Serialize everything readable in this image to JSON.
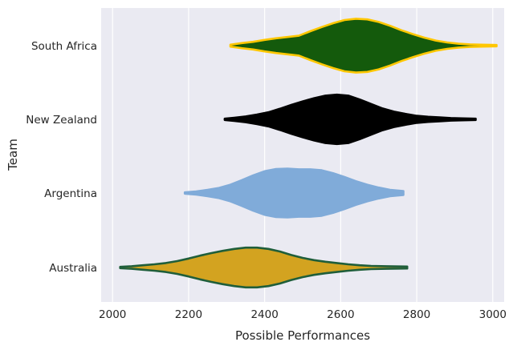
{
  "chart_data": {
    "type": "violin",
    "orientation": "horizontal",
    "xlabel": "Possible Performances",
    "ylabel": "Team",
    "xlim": [
      1970,
      3030
    ],
    "xticks": [
      2000,
      2200,
      2400,
      2600,
      2800,
      3000
    ],
    "grid": true,
    "categories": [
      "South Africa",
      "New Zealand",
      "Argentina",
      "Australia"
    ],
    "series": [
      {
        "name": "South Africa",
        "fill": "#145a0c",
        "edge": "#ffc700",
        "profile": [
          [
            2310,
            0.03
          ],
          [
            2340,
            0.08
          ],
          [
            2370,
            0.12
          ],
          [
            2400,
            0.18
          ],
          [
            2430,
            0.23
          ],
          [
            2460,
            0.27
          ],
          [
            2490,
            0.31
          ],
          [
            2520,
            0.45
          ],
          [
            2550,
            0.58
          ],
          [
            2580,
            0.7
          ],
          [
            2610,
            0.8
          ],
          [
            2640,
            0.84
          ],
          [
            2670,
            0.82
          ],
          [
            2700,
            0.74
          ],
          [
            2730,
            0.62
          ],
          [
            2760,
            0.48
          ],
          [
            2790,
            0.36
          ],
          [
            2820,
            0.25
          ],
          [
            2850,
            0.16
          ],
          [
            2880,
            0.1
          ],
          [
            2910,
            0.06
          ],
          [
            2940,
            0.04
          ],
          [
            2970,
            0.03
          ],
          [
            3010,
            0.02
          ]
        ]
      },
      {
        "name": "New Zealand",
        "fill": "#000000",
        "edge": "#000000",
        "profile": [
          [
            2295,
            0.02
          ],
          [
            2320,
            0.05
          ],
          [
            2350,
            0.09
          ],
          [
            2380,
            0.15
          ],
          [
            2410,
            0.22
          ],
          [
            2440,
            0.33
          ],
          [
            2470,
            0.45
          ],
          [
            2500,
            0.56
          ],
          [
            2530,
            0.66
          ],
          [
            2560,
            0.74
          ],
          [
            2590,
            0.77
          ],
          [
            2620,
            0.74
          ],
          [
            2650,
            0.62
          ],
          [
            2680,
            0.48
          ],
          [
            2710,
            0.34
          ],
          [
            2740,
            0.24
          ],
          [
            2770,
            0.17
          ],
          [
            2800,
            0.11
          ],
          [
            2830,
            0.08
          ],
          [
            2860,
            0.06
          ],
          [
            2890,
            0.04
          ],
          [
            2920,
            0.03
          ],
          [
            2955,
            0.02
          ]
        ]
      },
      {
        "name": "Argentina",
        "fill": "#80abd9",
        "edge": "#80abd9",
        "profile": [
          [
            2190,
            0.02
          ],
          [
            2220,
            0.05
          ],
          [
            2250,
            0.1
          ],
          [
            2280,
            0.16
          ],
          [
            2310,
            0.26
          ],
          [
            2340,
            0.4
          ],
          [
            2370,
            0.55
          ],
          [
            2400,
            0.68
          ],
          [
            2430,
            0.75
          ],
          [
            2460,
            0.76
          ],
          [
            2490,
            0.74
          ],
          [
            2520,
            0.74
          ],
          [
            2550,
            0.71
          ],
          [
            2580,
            0.62
          ],
          [
            2610,
            0.5
          ],
          [
            2640,
            0.37
          ],
          [
            2670,
            0.26
          ],
          [
            2700,
            0.17
          ],
          [
            2730,
            0.1
          ],
          [
            2765,
            0.06
          ]
        ]
      },
      {
        "name": "Australia",
        "fill": "#d3a320",
        "edge": "#1f5e3a",
        "profile": [
          [
            2020,
            0.02
          ],
          [
            2050,
            0.04
          ],
          [
            2080,
            0.07
          ],
          [
            2110,
            0.1
          ],
          [
            2140,
            0.14
          ],
          [
            2170,
            0.2
          ],
          [
            2200,
            0.28
          ],
          [
            2230,
            0.37
          ],
          [
            2260,
            0.45
          ],
          [
            2290,
            0.52
          ],
          [
            2320,
            0.58
          ],
          [
            2350,
            0.62
          ],
          [
            2380,
            0.62
          ],
          [
            2410,
            0.58
          ],
          [
            2440,
            0.5
          ],
          [
            2470,
            0.39
          ],
          [
            2500,
            0.3
          ],
          [
            2530,
            0.23
          ],
          [
            2560,
            0.18
          ],
          [
            2590,
            0.14
          ],
          [
            2620,
            0.1
          ],
          [
            2650,
            0.07
          ],
          [
            2680,
            0.05
          ],
          [
            2720,
            0.04
          ],
          [
            2775,
            0.03
          ]
        ]
      }
    ]
  }
}
